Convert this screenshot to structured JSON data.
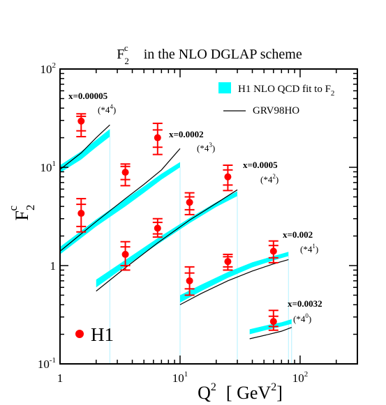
{
  "chart_data": {
    "type": "scatter",
    "title": {
      "base": "F",
      "sub": "2",
      "sup": "c",
      "rest": "in  the  NLO DGLAP  scheme"
    },
    "xlabel": {
      "base": "Q",
      "sup": "2",
      "units_open": "[ GeV",
      "units_sup": "2",
      "units_close": "]"
    },
    "ylabel": {
      "base": "F",
      "sub": "2",
      "sup": "c"
    },
    "xscale": "log",
    "yscale": "log",
    "xlim": [
      1,
      300
    ],
    "ylim": [
      0.1,
      100
    ],
    "x_ticks": [
      {
        "value": 1,
        "base": "1",
        "exp": ""
      },
      {
        "value": 10,
        "base": "10",
        "exp": "1"
      },
      {
        "value": 100,
        "base": "10",
        "exp": "2"
      }
    ],
    "y_ticks": [
      {
        "value": 0.1,
        "base": "10",
        "exp": "-1"
      },
      {
        "value": 1,
        "base": "1",
        "exp": ""
      },
      {
        "value": 10,
        "base": "10",
        "exp": "1"
      },
      {
        "value": 100,
        "base": "10",
        "exp": "2"
      }
    ],
    "grid": false,
    "legend": {
      "placement": "top-right",
      "band_label": {
        "text": "H1 NLO QCD  fit to F",
        "sub": "2"
      },
      "line_label": "GRV98HO",
      "points_label": "H1"
    },
    "colors": {
      "band": "#00ffff",
      "points": "#ff0000",
      "curve": "#000000",
      "separator": "#b3f0ff"
    },
    "bins": [
      {
        "x_label": "x=0.00005",
        "scale_text": "(*4",
        "scale_exp": "4",
        "scale_close": ")",
        "points": [
          {
            "x": 1.5,
            "y": 29.5,
            "y_low_inner": 23.5,
            "y_high_inner": 33,
            "y_low": 20.5,
            "y_high": 35
          }
        ],
        "range": [
          1,
          2.6
        ],
        "band": [
          {
            "x": 1,
            "lo": 8.8,
            "hi": 10.5
          },
          {
            "x": 1.5,
            "lo": 12,
            "hi": 14.5
          },
          {
            "x": 2.0,
            "lo": 16,
            "hi": 19
          },
          {
            "x": 2.6,
            "lo": 20.5,
            "hi": 24.5
          }
        ],
        "curve": [
          {
            "x": 1,
            "y": 9.5
          },
          {
            "x": 1.5,
            "y": 14
          },
          {
            "x": 2.0,
            "y": 20
          },
          {
            "x": 2.6,
            "y": 27
          }
        ]
      },
      {
        "x_label": "x=0.0002",
        "scale_text": "(*4",
        "scale_exp": "3",
        "scale_close": ")",
        "points": [
          {
            "x": 1.5,
            "y": 3.4,
            "y_low_inner": 2.5,
            "y_high_inner": 4.2,
            "y_low": 2.2,
            "y_high": 4.8
          },
          {
            "x": 3.5,
            "y": 8.9,
            "y_low_inner": 7.5,
            "y_high_inner": 10.2,
            "y_low": 6.5,
            "y_high": 10.8
          },
          {
            "x": 6.5,
            "y": 20,
            "y_low_inner": 16,
            "y_high_inner": 24,
            "y_low": 13.5,
            "y_high": 28
          }
        ],
        "range": [
          1,
          10
        ],
        "band": [
          {
            "x": 1,
            "lo": 1.3,
            "hi": 1.55
          },
          {
            "x": 2,
            "lo": 2.5,
            "hi": 2.95
          },
          {
            "x": 3.5,
            "lo": 4.0,
            "hi": 4.75
          },
          {
            "x": 5,
            "lo": 5.5,
            "hi": 6.4
          },
          {
            "x": 7,
            "lo": 7.5,
            "hi": 8.6
          },
          {
            "x": 10,
            "lo": 10.0,
            "hi": 11.3
          }
        ],
        "curve": [
          {
            "x": 1,
            "y": 1.4
          },
          {
            "x": 2,
            "y": 2.8
          },
          {
            "x": 3.5,
            "y": 4.8
          },
          {
            "x": 5,
            "y": 6.7
          },
          {
            "x": 7,
            "y": 9.4
          },
          {
            "x": 10,
            "y": 15.5
          }
        ]
      },
      {
        "x_label": "x=0.0005",
        "scale_text": "(*4",
        "scale_exp": "2",
        "scale_close": ")",
        "points": [
          {
            "x": 3.5,
            "y": 1.3,
            "y_low_inner": 1.0,
            "y_high_inner": 1.55,
            "y_low": 0.9,
            "y_high": 1.75
          },
          {
            "x": 6.5,
            "y": 2.4,
            "y_low_inner": 2.1,
            "y_high_inner": 2.75,
            "y_low": 1.95,
            "y_high": 3.0
          },
          {
            "x": 12,
            "y": 4.4,
            "y_low_inner": 3.7,
            "y_high_inner": 5.0,
            "y_low": 3.3,
            "y_high": 5.5
          },
          {
            "x": 25,
            "y": 8.0,
            "y_low_inner": 6.6,
            "y_high_inner": 9.4,
            "y_low": 5.8,
            "y_high": 10.5
          }
        ],
        "range": [
          2,
          30
        ],
        "band": [
          {
            "x": 2,
            "lo": 0.6,
            "hi": 0.72
          },
          {
            "x": 3.5,
            "lo": 0.98,
            "hi": 1.14
          },
          {
            "x": 6.5,
            "lo": 1.65,
            "hi": 1.9
          },
          {
            "x": 12,
            "lo": 2.7,
            "hi": 3.05
          },
          {
            "x": 20,
            "lo": 3.95,
            "hi": 4.4
          },
          {
            "x": 30,
            "lo": 5.1,
            "hi": 5.7
          }
        ],
        "curve": [
          {
            "x": 2,
            "y": 0.55
          },
          {
            "x": 3.5,
            "y": 0.95
          },
          {
            "x": 6.5,
            "y": 1.7
          },
          {
            "x": 12,
            "y": 2.9
          },
          {
            "x": 20,
            "y": 4.3
          },
          {
            "x": 30,
            "y": 5.9
          }
        ]
      },
      {
        "x_label": "x=0.002",
        "scale_text": "(*4",
        "scale_exp": "1",
        "scale_close": ")",
        "points": [
          {
            "x": 12,
            "y": 0.7,
            "y_low_inner": 0.58,
            "y_high_inner": 0.84,
            "y_low": 0.5,
            "y_high": 0.97
          },
          {
            "x": 25,
            "y": 1.1,
            "y_low_inner": 0.97,
            "y_high_inner": 1.23,
            "y_low": 0.9,
            "y_high": 1.3
          },
          {
            "x": 60,
            "y": 1.4,
            "y_low_inner": 1.2,
            "y_high_inner": 1.6,
            "y_low": 1.07,
            "y_high": 1.78
          }
        ],
        "range": [
          10,
          80
        ],
        "band": [
          {
            "x": 10,
            "lo": 0.42,
            "hi": 0.5
          },
          {
            "x": 15,
            "lo": 0.55,
            "hi": 0.64
          },
          {
            "x": 25,
            "lo": 0.75,
            "hi": 0.86
          },
          {
            "x": 40,
            "lo": 0.96,
            "hi": 1.08
          },
          {
            "x": 60,
            "lo": 1.13,
            "hi": 1.25
          },
          {
            "x": 80,
            "lo": 1.25,
            "hi": 1.38
          }
        ],
        "curve": [
          {
            "x": 10,
            "y": 0.4
          },
          {
            "x": 15,
            "y": 0.52
          },
          {
            "x": 25,
            "y": 0.7
          },
          {
            "x": 40,
            "y": 0.88
          },
          {
            "x": 60,
            "y": 1.04
          },
          {
            "x": 80,
            "y": 1.15
          }
        ]
      },
      {
        "x_label": "x=0.0032",
        "scale_text": "(*4",
        "scale_exp": "0",
        "scale_close": ")",
        "points": [
          {
            "x": 60,
            "y": 0.27,
            "y_low_inner": 0.24,
            "y_high_inner": 0.305,
            "y_low": 0.22,
            "y_high": 0.35
          }
        ],
        "range": [
          38,
          85
        ],
        "band": [
          {
            "x": 38,
            "lo": 0.2,
            "hi": 0.225
          },
          {
            "x": 55,
            "lo": 0.225,
            "hi": 0.25
          },
          {
            "x": 70,
            "lo": 0.24,
            "hi": 0.265
          },
          {
            "x": 85,
            "lo": 0.255,
            "hi": 0.285
          }
        ],
        "curve": [
          {
            "x": 38,
            "y": 0.18
          },
          {
            "x": 55,
            "y": 0.2
          },
          {
            "x": 70,
            "y": 0.215
          },
          {
            "x": 85,
            "y": 0.235
          }
        ]
      }
    ]
  }
}
